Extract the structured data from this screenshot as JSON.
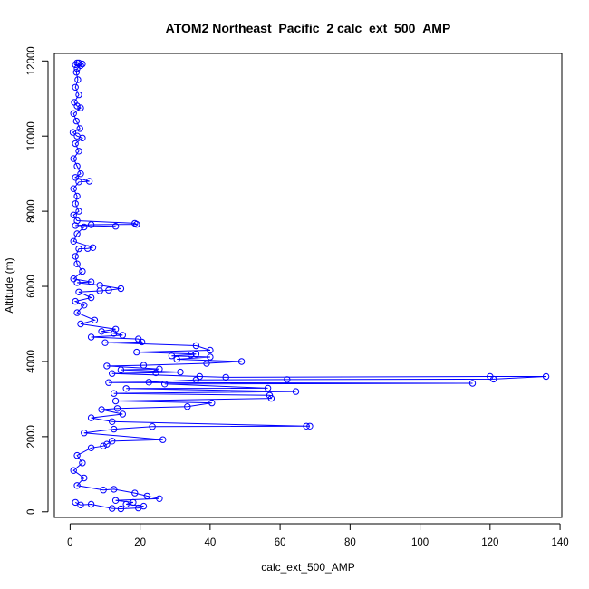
{
  "chart_data": {
    "type": "scatter",
    "style": "points-and-lines",
    "title": "ATOM2 Northeast_Pacific_2 calc_ext_500_AMP",
    "xlabel": "calc_ext_500_AMP",
    "ylabel": "Altitude (m)",
    "xlim": [
      -4.5,
      140.5
    ],
    "ylim": [
      -150,
      12200
    ],
    "x_ticks": [
      0,
      20,
      40,
      60,
      80,
      100,
      120,
      140
    ],
    "y_ticks": [
      0,
      2000,
      4000,
      6000,
      8000,
      10000,
      12000
    ],
    "grid": false,
    "legend": "none",
    "series": [
      {
        "color": "#0000ff",
        "points": [
          {
            "x": 2,
            "y": 11950
          },
          {
            "x": 1.5,
            "y": 11900
          },
          {
            "x": 3,
            "y": 11880
          },
          {
            "x": 2.5,
            "y": 11950
          },
          {
            "x": 3.5,
            "y": 11920
          },
          {
            "x": 2,
            "y": 11800
          },
          {
            "x": 1.8,
            "y": 11700
          },
          {
            "x": 2.2,
            "y": 11500
          },
          {
            "x": 1.5,
            "y": 11300
          },
          {
            "x": 2.5,
            "y": 11100
          },
          {
            "x": 1.2,
            "y": 10900
          },
          {
            "x": 2,
            "y": 10800
          },
          {
            "x": 3,
            "y": 10750
          },
          {
            "x": 1,
            "y": 10600
          },
          {
            "x": 1.8,
            "y": 10400
          },
          {
            "x": 2.8,
            "y": 10200
          },
          {
            "x": 0.8,
            "y": 10100
          },
          {
            "x": 2,
            "y": 10000
          },
          {
            "x": 3.5,
            "y": 9950
          },
          {
            "x": 1.5,
            "y": 9800
          },
          {
            "x": 2.5,
            "y": 9600
          },
          {
            "x": 1,
            "y": 9400
          },
          {
            "x": 2,
            "y": 9200
          },
          {
            "x": 3,
            "y": 9000
          },
          {
            "x": 1.5,
            "y": 8900
          },
          {
            "x": 5.5,
            "y": 8800
          },
          {
            "x": 2.5,
            "y": 8780
          },
          {
            "x": 1,
            "y": 8600
          },
          {
            "x": 2,
            "y": 8400
          },
          {
            "x": 1.5,
            "y": 8200
          },
          {
            "x": 2.5,
            "y": 8000
          },
          {
            "x": 1,
            "y": 7900
          },
          {
            "x": 2,
            "y": 7750
          },
          {
            "x": 18.5,
            "y": 7680
          },
          {
            "x": 19,
            "y": 7650
          },
          {
            "x": 6,
            "y": 7640
          },
          {
            "x": 1.5,
            "y": 7620
          },
          {
            "x": 13,
            "y": 7600
          },
          {
            "x": 4,
            "y": 7580
          },
          {
            "x": 2,
            "y": 7400
          },
          {
            "x": 1,
            "y": 7200
          },
          {
            "x": 6.5,
            "y": 7030
          },
          {
            "x": 5,
            "y": 7010
          },
          {
            "x": 2.5,
            "y": 7000
          },
          {
            "x": 1.5,
            "y": 6800
          },
          {
            "x": 2,
            "y": 6600
          },
          {
            "x": 3.5,
            "y": 6400
          },
          {
            "x": 1,
            "y": 6200
          },
          {
            "x": 6,
            "y": 6120
          },
          {
            "x": 2,
            "y": 6100
          },
          {
            "x": 8.5,
            "y": 6030
          },
          {
            "x": 14.5,
            "y": 5940
          },
          {
            "x": 11,
            "y": 5900
          },
          {
            "x": 8.5,
            "y": 5880
          },
          {
            "x": 2.5,
            "y": 5850
          },
          {
            "x": 6,
            "y": 5700
          },
          {
            "x": 1.5,
            "y": 5600
          },
          {
            "x": 4,
            "y": 5500
          },
          {
            "x": 2,
            "y": 5300
          },
          {
            "x": 7,
            "y": 5100
          },
          {
            "x": 3,
            "y": 5000
          },
          {
            "x": 13,
            "y": 4860
          },
          {
            "x": 9,
            "y": 4800
          },
          {
            "x": 12.5,
            "y": 4750
          },
          {
            "x": 15,
            "y": 4700
          },
          {
            "x": 6,
            "y": 4650
          },
          {
            "x": 19.5,
            "y": 4600
          },
          {
            "x": 20.5,
            "y": 4520
          },
          {
            "x": 10,
            "y": 4500
          },
          {
            "x": 36,
            "y": 4420
          },
          {
            "x": 40,
            "y": 4300
          },
          {
            "x": 19,
            "y": 4250
          },
          {
            "x": 36,
            "y": 4200
          },
          {
            "x": 34.5,
            "y": 4180
          },
          {
            "x": 29,
            "y": 4150
          },
          {
            "x": 40,
            "y": 4120
          },
          {
            "x": 30.5,
            "y": 4060
          },
          {
            "x": 49,
            "y": 4000
          },
          {
            "x": 39,
            "y": 3950
          },
          {
            "x": 21,
            "y": 3900
          },
          {
            "x": 10.5,
            "y": 3880
          },
          {
            "x": 25.5,
            "y": 3800
          },
          {
            "x": 14.5,
            "y": 3780
          },
          {
            "x": 31.5,
            "y": 3720
          },
          {
            "x": 24.5,
            "y": 3700
          },
          {
            "x": 12,
            "y": 3680
          },
          {
            "x": 37,
            "y": 3600
          },
          {
            "x": 44.5,
            "y": 3580
          },
          {
            "x": 120,
            "y": 3600
          },
          {
            "x": 136,
            "y": 3600
          },
          {
            "x": 121,
            "y": 3530
          },
          {
            "x": 62,
            "y": 3520
          },
          {
            "x": 36,
            "y": 3510
          },
          {
            "x": 22.5,
            "y": 3450
          },
          {
            "x": 11,
            "y": 3440
          },
          {
            "x": 115,
            "y": 3420
          },
          {
            "x": 27,
            "y": 3400
          },
          {
            "x": 56.5,
            "y": 3290
          },
          {
            "x": 16,
            "y": 3280
          },
          {
            "x": 64.5,
            "y": 3200
          },
          {
            "x": 12.5,
            "y": 3150
          },
          {
            "x": 57,
            "y": 3100
          },
          {
            "x": 57.5,
            "y": 3020
          },
          {
            "x": 13,
            "y": 2950
          },
          {
            "x": 40.5,
            "y": 2900
          },
          {
            "x": 33.5,
            "y": 2800
          },
          {
            "x": 13.5,
            "y": 2750
          },
          {
            "x": 9,
            "y": 2720
          },
          {
            "x": 15,
            "y": 2600
          },
          {
            "x": 6,
            "y": 2500
          },
          {
            "x": 12,
            "y": 2400
          },
          {
            "x": 67.5,
            "y": 2280
          },
          {
            "x": 68.5,
            "y": 2280
          },
          {
            "x": 23.5,
            "y": 2270
          },
          {
            "x": 12.5,
            "y": 2200
          },
          {
            "x": 4,
            "y": 2100
          },
          {
            "x": 26.5,
            "y": 1920
          },
          {
            "x": 12,
            "y": 1880
          },
          {
            "x": 10.5,
            "y": 1800
          },
          {
            "x": 9.5,
            "y": 1750
          },
          {
            "x": 6,
            "y": 1700
          },
          {
            "x": 2,
            "y": 1500
          },
          {
            "x": 3.5,
            "y": 1300
          },
          {
            "x": 1,
            "y": 1100
          },
          {
            "x": 4,
            "y": 900
          },
          {
            "x": 2,
            "y": 700
          },
          {
            "x": 9.5,
            "y": 580
          },
          {
            "x": 12.5,
            "y": 600
          },
          {
            "x": 18.5,
            "y": 500
          },
          {
            "x": 22,
            "y": 420
          },
          {
            "x": 25.5,
            "y": 350
          },
          {
            "x": 13,
            "y": 300
          },
          {
            "x": 18,
            "y": 250
          },
          {
            "x": 16,
            "y": 200
          },
          {
            "x": 21,
            "y": 150
          },
          {
            "x": 19.5,
            "y": 100
          },
          {
            "x": 14.5,
            "y": 80
          },
          {
            "x": 12,
            "y": 90
          },
          {
            "x": 6,
            "y": 200
          },
          {
            "x": 3,
            "y": 180
          },
          {
            "x": 1.5,
            "y": 250
          }
        ]
      }
    ]
  }
}
